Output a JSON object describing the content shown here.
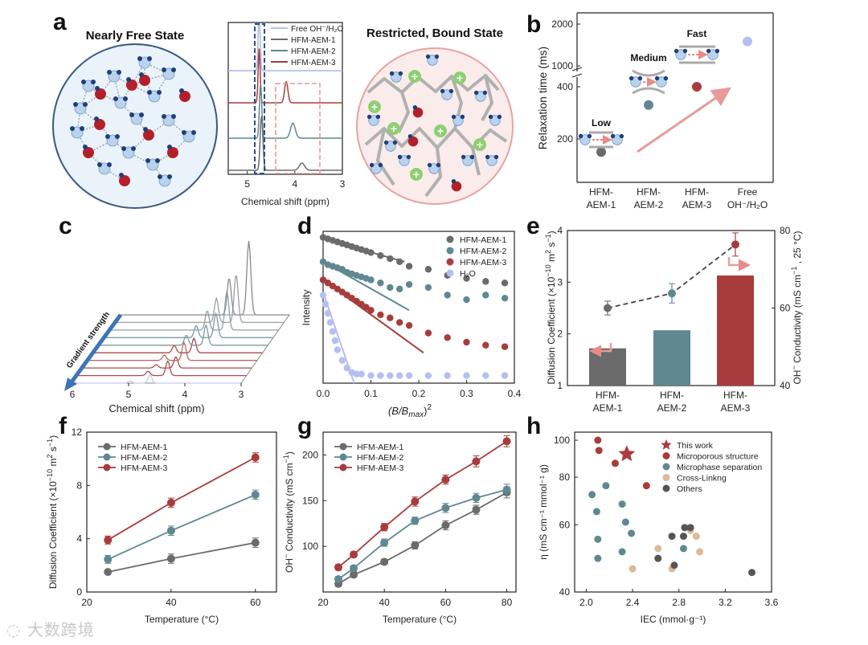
{
  "panel_letters": [
    "a",
    "b",
    "c",
    "d",
    "e",
    "f",
    "g",
    "h"
  ],
  "colors": {
    "aem1": "#6b6b6b",
    "aem2": "#5f8891",
    "aem3": "#a83c3c",
    "h2o": "#b6bff0",
    "dark3": "#9a3131",
    "light_edge": "#3a5a85"
  },
  "panel_a": {
    "left_title": "Nearly Free State",
    "right_title": "Restricted, Bound State"
  },
  "chart_data": [
    {
      "id": "a",
      "type": "line",
      "xlabel": "Chemical shift (ppm)",
      "xticks": [
        5,
        4,
        3
      ],
      "xlim": [
        5.4,
        3
      ],
      "legend": [
        "Free OH⁻/H₂O",
        "HFM-AEM-1",
        "HFM-AEM-2",
        "HFM-AEM-3"
      ],
      "series": [
        {
          "name": "Free OH⁻/H₂O",
          "peaks": [
            [
              4.75,
              1.0,
              0.03
            ]
          ],
          "offset": 3
        },
        {
          "name": "HFM-AEM-3",
          "peaks": [
            [
              4.75,
              0.9,
              0.03
            ],
            [
              4.18,
              0.35,
              0.05
            ]
          ],
          "offset": 2
        },
        {
          "name": "HFM-AEM-2",
          "peaks": [
            [
              4.72,
              0.9,
              0.035
            ],
            [
              4.04,
              0.25,
              0.07
            ]
          ],
          "offset": 1
        },
        {
          "name": "HFM-AEM-1",
          "peaks": [
            [
              4.7,
              0.9,
              0.04
            ],
            [
              3.85,
              0.12,
              0.08
            ]
          ],
          "offset": 0
        }
      ]
    },
    {
      "id": "b",
      "type": "scatter",
      "ylabel": "Relaxation time (ms)",
      "yticks": [
        200,
        400,
        1000,
        2000
      ],
      "categories": [
        "HFM-AEM-1",
        "HFM-AEM-2",
        "HFM-AEM-3",
        "Free OH⁻/H₂O"
      ],
      "values": [
        150,
        330,
        450,
        1500
      ],
      "labels": [
        "Low",
        "Medium",
        "Fast"
      ]
    },
    {
      "id": "c",
      "type": "line",
      "xlabel": "Chemical shift (ppm)",
      "xticks": [
        6,
        5,
        4,
        3
      ],
      "xlim": [
        6,
        3
      ],
      "annotation": "Gradient strength",
      "traces": 10
    },
    {
      "id": "d",
      "type": "scatter",
      "xlabel": "(B/B",
      "ylabel": "Intensity",
      "xticks": [
        0.0,
        0.1,
        0.2,
        0.3,
        0.4
      ],
      "xlim": [
        0,
        0.4
      ],
      "series": [
        {
          "name": "HFM-AEM-1",
          "x": [
            0,
            0.01,
            0.02,
            0.03,
            0.04,
            0.05,
            0.06,
            0.07,
            0.08,
            0.09,
            0.1,
            0.12,
            0.14,
            0.16,
            0.18,
            0.22,
            0.26,
            0.3,
            0.34,
            0.38
          ],
          "y": [
            0.96,
            0.95,
            0.94,
            0.93,
            0.92,
            0.91,
            0.9,
            0.89,
            0.88,
            0.87,
            0.86,
            0.84,
            0.82,
            0.8,
            0.77,
            0.75,
            0.71,
            0.69,
            0.67,
            0.66
          ]
        },
        {
          "name": "HFM-AEM-2",
          "x": [
            0,
            0.01,
            0.02,
            0.03,
            0.04,
            0.05,
            0.06,
            0.07,
            0.08,
            0.09,
            0.1,
            0.12,
            0.14,
            0.16,
            0.18,
            0.22,
            0.26,
            0.3,
            0.34,
            0.38
          ],
          "y": [
            0.8,
            0.78,
            0.77,
            0.76,
            0.75,
            0.73,
            0.72,
            0.71,
            0.7,
            0.69,
            0.68,
            0.66,
            0.63,
            0.62,
            0.65,
            0.63,
            0.58,
            0.55,
            0.58,
            0.56
          ]
        },
        {
          "name": "HFM-AEM-3",
          "x": [
            0,
            0.01,
            0.02,
            0.03,
            0.04,
            0.05,
            0.06,
            0.07,
            0.08,
            0.09,
            0.1,
            0.12,
            0.14,
            0.16,
            0.18,
            0.22,
            0.26,
            0.3,
            0.34,
            0.38
          ],
          "y": [
            0.68,
            0.66,
            0.64,
            0.62,
            0.6,
            0.58,
            0.56,
            0.54,
            0.52,
            0.5,
            0.48,
            0.45,
            0.43,
            0.4,
            0.38,
            0.33,
            0.3,
            0.27,
            0.25,
            0.24
          ]
        },
        {
          "name": "H₂O",
          "x": [
            0,
            0.005,
            0.01,
            0.015,
            0.02,
            0.025,
            0.03,
            0.04,
            0.05,
            0.06,
            0.07,
            0.08,
            0.1,
            0.12,
            0.14,
            0.16,
            0.18,
            0.22,
            0.26,
            0.3,
            0.34,
            0.38
          ],
          "y": [
            0.58,
            0.52,
            0.46,
            0.4,
            0.34,
            0.28,
            0.22,
            0.15,
            0.1,
            0.07,
            0.06,
            0.06,
            0.05,
            0.05,
            0.05,
            0.05,
            0.05,
            0.05,
            0.05,
            0.05,
            0.05,
            0.05
          ]
        }
      ],
      "fits": [
        {
          "series": "HFM-AEM-1",
          "x": [
            0,
            0.17
          ],
          "y": [
            0.95,
            0.8
          ]
        },
        {
          "series": "HFM-AEM-2",
          "x": [
            0,
            0.18
          ],
          "y": [
            0.8,
            0.48
          ]
        },
        {
          "series": "HFM-AEM-3",
          "x": [
            0,
            0.21
          ],
          "y": [
            0.68,
            0.2
          ]
        },
        {
          "series": "H₂O",
          "x": [
            0,
            0.065
          ],
          "y": [
            0.6,
            0.0
          ]
        }
      ]
    },
    {
      "id": "e",
      "type": "bar",
      "categories": [
        "HFM-AEM-1",
        "HFM-AEM-2",
        "HFM-AEM-3"
      ],
      "values": [
        1.72,
        2.07,
        3.13
      ],
      "ylim": [
        1,
        4
      ],
      "yticks": [
        1,
        2,
        3,
        4
      ],
      "y2ticks": [
        40,
        60,
        80
      ],
      "y2lim": [
        40,
        80
      ],
      "conductivity": [
        60.0,
        63.8,
        76.4
      ],
      "conductivity_err": [
        1.8,
        2.5,
        3.0
      ],
      "ylabel": "Diffusion Coefficient (×10",
      "y2label": "OH⁻ Conductivity (mS cm"
    },
    {
      "id": "f",
      "type": "line",
      "xlabel": "Temperature (°C)",
      "ylabel": "Diffusion Coefficient (×10",
      "x": [
        25,
        40,
        60
      ],
      "xlim": [
        20,
        65
      ],
      "ylim": [
        0,
        12
      ],
      "xticks": [
        20,
        40,
        60
      ],
      "yticks": [
        0,
        4,
        8,
        12
      ],
      "series": [
        {
          "name": "HFM-AEM-1",
          "values": [
            1.5,
            2.5,
            3.7
          ],
          "err": [
            0.15,
            0.35,
            0.35
          ]
        },
        {
          "name": "HFM-AEM-2",
          "values": [
            2.45,
            4.6,
            7.3
          ],
          "err": [
            0.3,
            0.35,
            0.35
          ]
        },
        {
          "name": "HFM-AEM-3",
          "values": [
            3.9,
            6.7,
            10.1
          ],
          "err": [
            0.3,
            0.35,
            0.35
          ]
        }
      ]
    },
    {
      "id": "g",
      "type": "line",
      "xlabel": "Temperature (°C)",
      "ylabel": "OH⁻ Conductivity (mS cm",
      "x": [
        25,
        30,
        40,
        50,
        60,
        70,
        80
      ],
      "xlim": [
        20,
        83
      ],
      "ylim": [
        50,
        225
      ],
      "xticks": [
        20,
        40,
        60,
        80
      ],
      "yticks": [
        100,
        150,
        200
      ],
      "series": [
        {
          "name": "HFM-AEM-1",
          "values": [
            59,
            69,
            83,
            101,
            123,
            140,
            159
          ],
          "err": [
            3,
            3,
            3,
            4,
            5,
            5,
            6
          ]
        },
        {
          "name": "HFM-AEM-2",
          "values": [
            64,
            76,
            104,
            128,
            142,
            153,
            162
          ],
          "err": [
            3,
            3,
            4,
            4,
            5,
            5,
            6
          ]
        },
        {
          "name": "HFM-AEM-3",
          "values": [
            77,
            91,
            121,
            149,
            173,
            193,
            215
          ],
          "err": [
            3,
            3,
            4,
            5,
            5,
            6,
            6
          ]
        }
      ]
    },
    {
      "id": "h",
      "type": "scatter",
      "xlabel": "IEC (mmol·g⁻¹)",
      "ylabel": "η (mS cm⁻¹ mmol⁻¹ g)",
      "xlim": [
        1.9,
        3.6
      ],
      "ylim": [
        40,
        105
      ],
      "xticks": [
        2.0,
        2.4,
        2.8,
        3.2,
        3.6
      ],
      "yticks": [
        40,
        60,
        80,
        100
      ],
      "series": [
        {
          "name": "This work",
          "x": [
            2.35
          ],
          "y": [
            92
          ]
        },
        {
          "name": "Microporous structure",
          "x": [
            2.1,
            2.11,
            2.25,
            2.52
          ],
          "y": [
            100,
            94,
            87,
            76
          ]
        },
        {
          "name": "Microphase separation",
          "x": [
            2.05,
            2.09,
            2.17,
            2.31,
            2.34,
            2.1,
            2.39,
            2.31,
            2.1,
            2.84
          ],
          "y": [
            72,
            65,
            76,
            68,
            61,
            55,
            57,
            51,
            49,
            52
          ]
        },
        {
          "name": "Cross-Linkng",
          "x": [
            2.9,
            2.95,
            2.98,
            2.62,
            2.74,
            2.4
          ],
          "y": [
            58,
            56,
            51,
            52,
            46,
            46
          ]
        },
        {
          "name": "Others",
          "x": [
            2.74,
            2.85,
            2.9,
            2.84,
            2.62,
            2.76,
            3.43
          ],
          "y": [
            56,
            59,
            59,
            56,
            49,
            47,
            45
          ]
        }
      ]
    }
  ],
  "watermark": "大数跨境"
}
